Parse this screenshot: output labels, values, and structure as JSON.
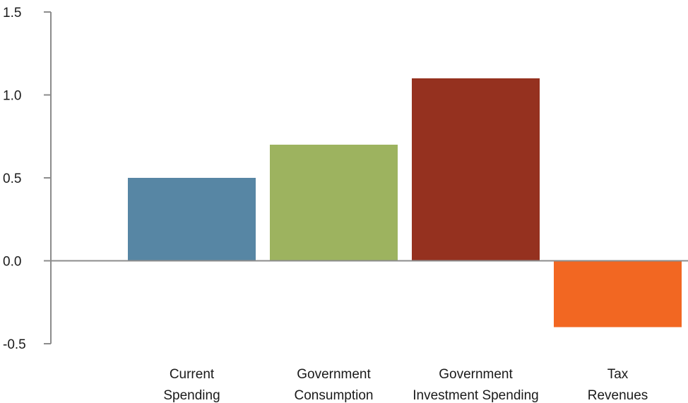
{
  "chart_data": {
    "type": "bar",
    "title": "",
    "xlabel": "",
    "ylabel": "",
    "categories": [
      [
        "Current",
        "Spending"
      ],
      [
        "Government",
        "Consumption"
      ],
      [
        "Government",
        "Investment Spending"
      ],
      [
        "Tax",
        "Revenues"
      ]
    ],
    "values": [
      0.5,
      0.7,
      1.1,
      -0.4
    ],
    "colors": [
      "#5786a4",
      "#9db35f",
      "#95311f",
      "#f26722"
    ],
    "ylim": [
      -0.5,
      1.5
    ],
    "yticks": [
      -0.5,
      0.0,
      0.5,
      1.0,
      1.5
    ],
    "ytick_labels": [
      "-0.5",
      "0.0",
      "0.5",
      "1.0",
      "1.5"
    ],
    "grid": false,
    "legend": "none"
  }
}
